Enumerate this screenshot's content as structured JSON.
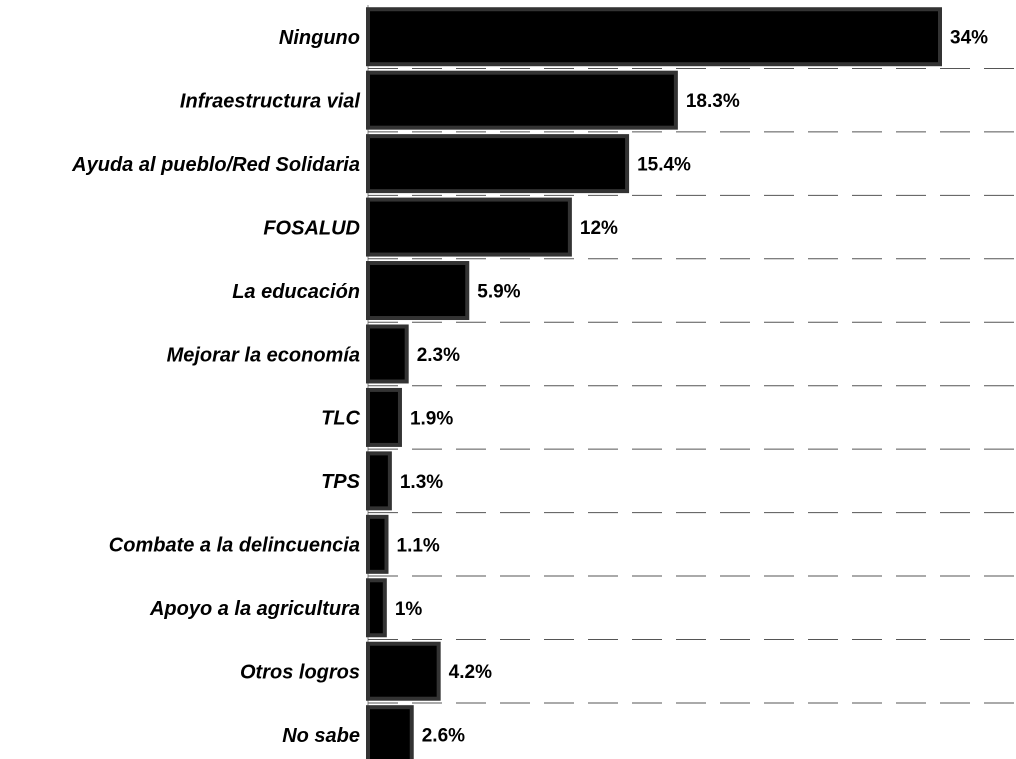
{
  "chart_data": {
    "type": "bar",
    "orientation": "horizontal",
    "categories": [
      "Ninguno",
      "Infraestructura vial",
      "Ayuda al pueblo/Red Solidaria",
      "FOSALUD",
      "La educación",
      "Mejorar la economía",
      "TLC",
      "TPS",
      "Combate a la delincuencia",
      "Apoyo a la agricultura",
      "Otros logros",
      "No sabe"
    ],
    "values": [
      34,
      18.3,
      15.4,
      12,
      5.9,
      2.3,
      1.9,
      1.3,
      1.1,
      1,
      4.2,
      2.6
    ],
    "value_labels": [
      "34%",
      "18.3%",
      "15.4%",
      "12%",
      "5.9%",
      "2.3%",
      "1.9%",
      "1.3%",
      "1.1%",
      "1%",
      "4.2%",
      "2.6%"
    ],
    "color": "#000000"
  }
}
